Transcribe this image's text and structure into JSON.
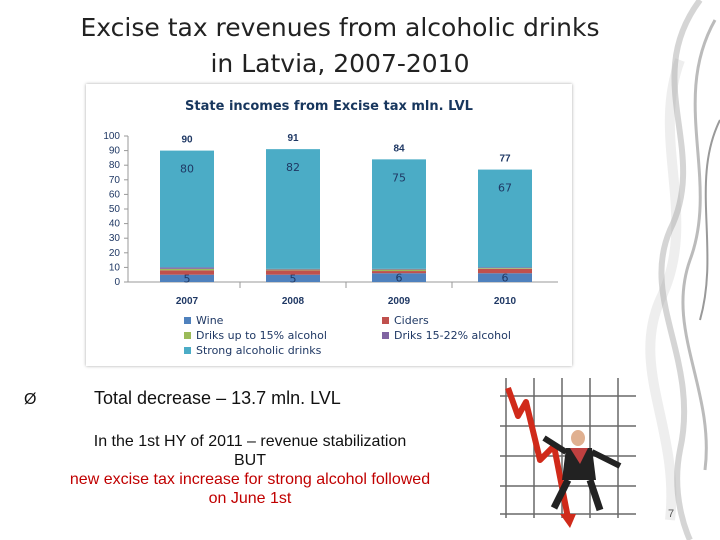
{
  "slide": {
    "title_line1": "Excise tax revenues from alcoholic drinks",
    "title_line2": "in Latvia, 2007-2010",
    "bullet_marker": "Ø",
    "bullet_text": "Total decrease – 13.7 mln. LVL",
    "note_line1": "In the 1st HY of 2011 – revenue stabilization",
    "note_line2": "BUT",
    "note_line3": "new excise tax increase for strong alcohol followed",
    "note_line4": "on June 1st",
    "page_number": "7"
  },
  "colors": {
    "wine": "#4f81bd",
    "ciders": "#c0504d",
    "drinks_15": "#9bbb59",
    "drinks_15_22": "#8064a2",
    "strong": "#4bacc6"
  },
  "chart_data": {
    "type": "bar",
    "stacked": true,
    "title": "State incomes from Excise tax mln. LVL",
    "categories": [
      "2007",
      "2008",
      "2009",
      "2010"
    ],
    "ylim": [
      0,
      100
    ],
    "yticks": [
      0,
      10,
      20,
      30,
      40,
      50,
      60,
      70,
      80,
      90,
      100
    ],
    "totals": [
      90,
      91,
      84,
      77
    ],
    "series": [
      {
        "name": "Wine",
        "color_key": "wine",
        "values": [
          5,
          5,
          6,
          6
        ],
        "labels": [
          "5",
          "5",
          "6",
          "6"
        ]
      },
      {
        "name": "Ciders",
        "color_key": "ciders",
        "values": [
          3,
          3,
          1.5,
          3
        ],
        "labels": [
          "",
          "",
          "",
          ""
        ]
      },
      {
        "name": "Driks up to 15% alcohol",
        "color_key": "drinks_15",
        "values": [
          1,
          0.5,
          1,
          0.5
        ],
        "labels": [
          "",
          "",
          "",
          ""
        ]
      },
      {
        "name": "Driks 15-22% alcohol",
        "color_key": "drinks_15_22",
        "values": [
          1,
          0.5,
          0.5,
          0.5
        ],
        "labels": [
          "",
          "",
          "",
          ""
        ]
      },
      {
        "name": "Strong alcoholic drinks",
        "color_key": "strong",
        "values": [
          80,
          82,
          75,
          67
        ],
        "labels": [
          "80",
          "82",
          "75",
          "67"
        ]
      }
    ],
    "legend_position": "bottom",
    "grid": false
  }
}
